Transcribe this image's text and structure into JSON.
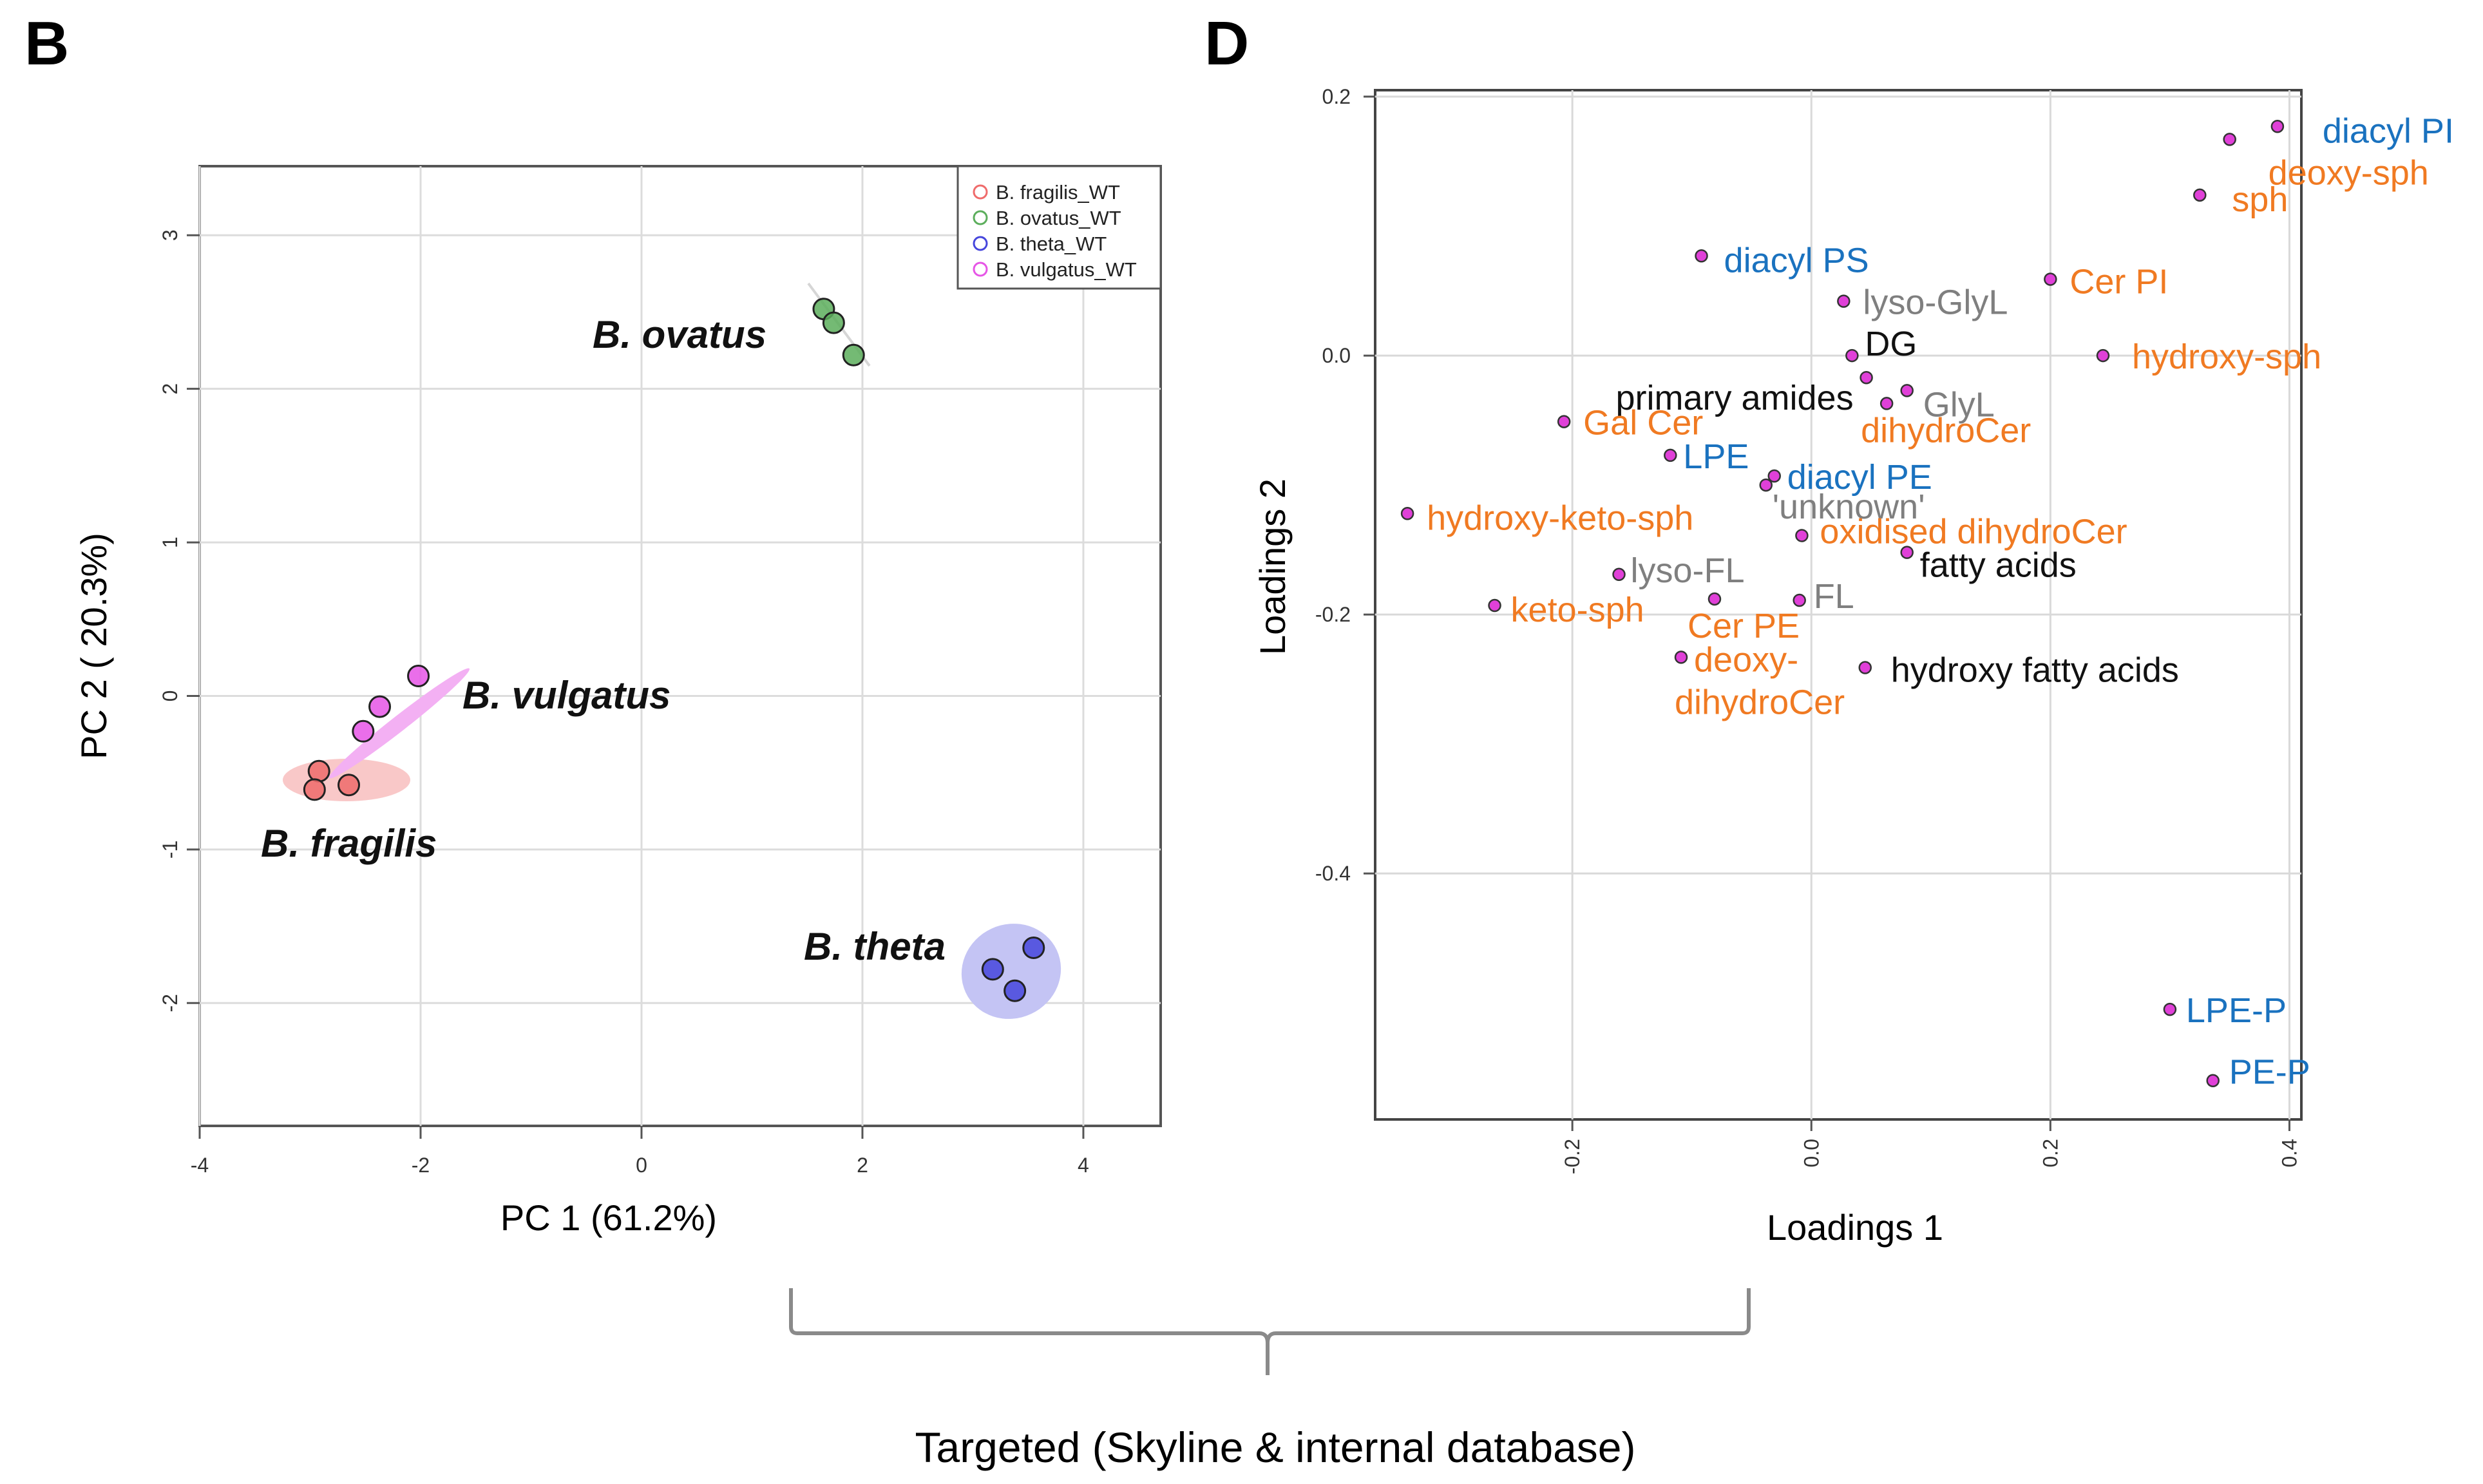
{
  "figure": {
    "caption": "Targeted (Skyline & internal database)"
  },
  "colors": {
    "class_blue": "#1a72bf",
    "class_orange": "#f07a22",
    "class_gray": "#7f7f7f",
    "class_black": "#111111",
    "loading_point": "#e040d8",
    "grid": "#d9d9d9",
    "axis": "#555555"
  },
  "chart_data": [
    {
      "panel_label": "B",
      "type": "scatter",
      "title": "",
      "xlabel": "PC 1 (61.2%)",
      "ylabel": "PC 2 ( 20.3%)",
      "xlim": [
        -4.0,
        4.7
      ],
      "ylim": [
        -2.8,
        3.45
      ],
      "xticks": [
        -4,
        -2,
        0,
        2,
        4
      ],
      "yticks": [
        -2,
        -1,
        0,
        1,
        2,
        3
      ],
      "grid": true,
      "legend_position": "top-right",
      "series": [
        {
          "name": "B. fragilis_WT",
          "label": "B. fragilis",
          "color": "#ef6b6b",
          "fill": "#f9c8c8",
          "points": [
            [
              -2.92,
              -0.49
            ],
            [
              -2.96,
              -0.61
            ],
            [
              -2.65,
              -0.58
            ]
          ]
        },
        {
          "name": "B. ovatus_WT",
          "label": "B. ovatus",
          "color": "#5cae5c",
          "fill": "#cfe8cf",
          "points": [
            [
              1.65,
              2.52
            ],
            [
              1.74,
              2.43
            ],
            [
              1.92,
              2.22
            ]
          ]
        },
        {
          "name": "B. theta_WT",
          "label": "B. theta",
          "color": "#4646dc",
          "fill": "#c8c8f5",
          "points": [
            [
              3.18,
              -1.78
            ],
            [
              3.55,
              -1.64
            ],
            [
              3.38,
              -1.92
            ]
          ]
        },
        {
          "name": "B. vulgatus_WT",
          "label": "B. vulgatus",
          "color": "#e655e6",
          "fill": "#f6c5f6",
          "points": [
            [
              -2.02,
              0.13
            ],
            [
              -2.37,
              -0.07
            ],
            [
              -2.52,
              -0.23
            ]
          ]
        }
      ]
    },
    {
      "panel_label": "D",
      "type": "scatter",
      "title": "",
      "xlabel": "Loadings 1",
      "ylabel": "Loadings 2",
      "xlim": [
        -0.365,
        0.41
      ],
      "ylim": [
        -0.59,
        0.205
      ],
      "xticks": [
        -0.2,
        0.0,
        0.2,
        0.4
      ],
      "xtick_labels": [
        "-0.2",
        "0.0",
        "0.2",
        "0.4"
      ],
      "yticks": [
        -0.4,
        -0.2,
        0.0,
        0.2
      ],
      "ytick_labels": [
        "-0.4",
        "-0.2",
        "0.0",
        "0.2"
      ],
      "grid": true,
      "points": [
        {
          "label": "diacyl PI",
          "x": 0.39,
          "y": 0.177,
          "class": "blue"
        },
        {
          "label": "deoxy-sph",
          "x": 0.35,
          "y": 0.167,
          "class": "orange"
        },
        {
          "label": "sph",
          "x": 0.325,
          "y": 0.124,
          "class": "orange"
        },
        {
          "label": "diacyl PS",
          "x": -0.092,
          "y": 0.077,
          "class": "blue"
        },
        {
          "label": "Cer PI",
          "x": 0.2,
          "y": 0.059,
          "class": "orange"
        },
        {
          "label": "lyso-GlyL",
          "x": 0.027,
          "y": 0.042,
          "class": "gray"
        },
        {
          "label": "hydroxy-sph",
          "x": 0.244,
          "y": 0.0,
          "class": "orange"
        },
        {
          "label": "DG",
          "x": 0.034,
          "y": 0.0,
          "class": "black"
        },
        {
          "label": "primary amides",
          "x": 0.046,
          "y": -0.017,
          "class": "black"
        },
        {
          "label": "GlyL",
          "x": 0.08,
          "y": -0.027,
          "class": "gray"
        },
        {
          "label": "dihydroCer",
          "x": 0.063,
          "y": -0.037,
          "class": "orange"
        },
        {
          "label": "Gal Cer",
          "x": -0.207,
          "y": -0.051,
          "class": "orange"
        },
        {
          "label": "LPE",
          "x": -0.118,
          "y": -0.077,
          "class": "blue"
        },
        {
          "label": "diacyl PE",
          "x": -0.031,
          "y": -0.093,
          "class": "blue"
        },
        {
          "label": "'unknown'",
          "x": -0.038,
          "y": -0.1,
          "class": "gray"
        },
        {
          "label": "hydroxy-keto-sph",
          "x": -0.338,
          "y": -0.122,
          "class": "orange"
        },
        {
          "label": "oxidised dihydroCer",
          "x": -0.008,
          "y": -0.139,
          "class": "orange"
        },
        {
          "label": "fatty acids",
          "x": 0.08,
          "y": -0.152,
          "class": "black"
        },
        {
          "label": "lyso-FL",
          "x": -0.161,
          "y": -0.169,
          "class": "gray"
        },
        {
          "label": "FL",
          "x": -0.01,
          "y": -0.189,
          "class": "gray"
        },
        {
          "label": "Cer PE",
          "x": -0.081,
          "y": -0.188,
          "class": "orange"
        },
        {
          "label": "keto-sph",
          "x": -0.265,
          "y": -0.193,
          "class": "orange"
        },
        {
          "label": "deoxy-\ndihydroCer",
          "x": -0.109,
          "y": -0.233,
          "class": "orange"
        },
        {
          "label": "hydroxy fatty acids",
          "x": 0.045,
          "y": -0.241,
          "class": "black"
        },
        {
          "label": "LPE-P",
          "x": 0.3,
          "y": -0.505,
          "class": "blue"
        },
        {
          "label": "PE-P",
          "x": 0.336,
          "y": -0.56,
          "class": "blue"
        }
      ]
    }
  ]
}
